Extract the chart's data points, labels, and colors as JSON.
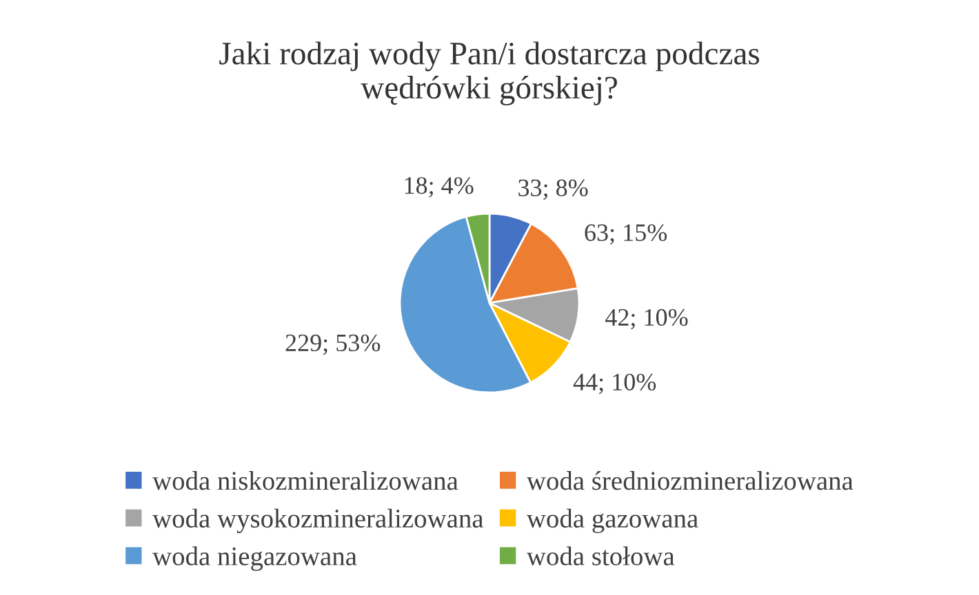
{
  "chart_data": {
    "type": "pie",
    "title": "Jaki rodzaj wody Pan/i dostarcza podczas\nwędrówki górskiej?",
    "categories": [
      "woda niskozmineralizowana",
      "woda średniozmineralizowana",
      "woda wysokozmineralizowana",
      "woda gazowana",
      "woda niegazowana",
      "woda stołowa"
    ],
    "values": [
      33,
      63,
      42,
      44,
      229,
      18
    ],
    "value_labels": [
      "33; 8%",
      "63; 15%",
      "42; 10%",
      "44; 10%",
      "229; 53%",
      "18; 4%"
    ],
    "colors": [
      "#4472c4",
      "#ed7d31",
      "#a5a5a5",
      "#ffc000",
      "#5b9bd5",
      "#70ad47"
    ],
    "legend": "bottom"
  }
}
